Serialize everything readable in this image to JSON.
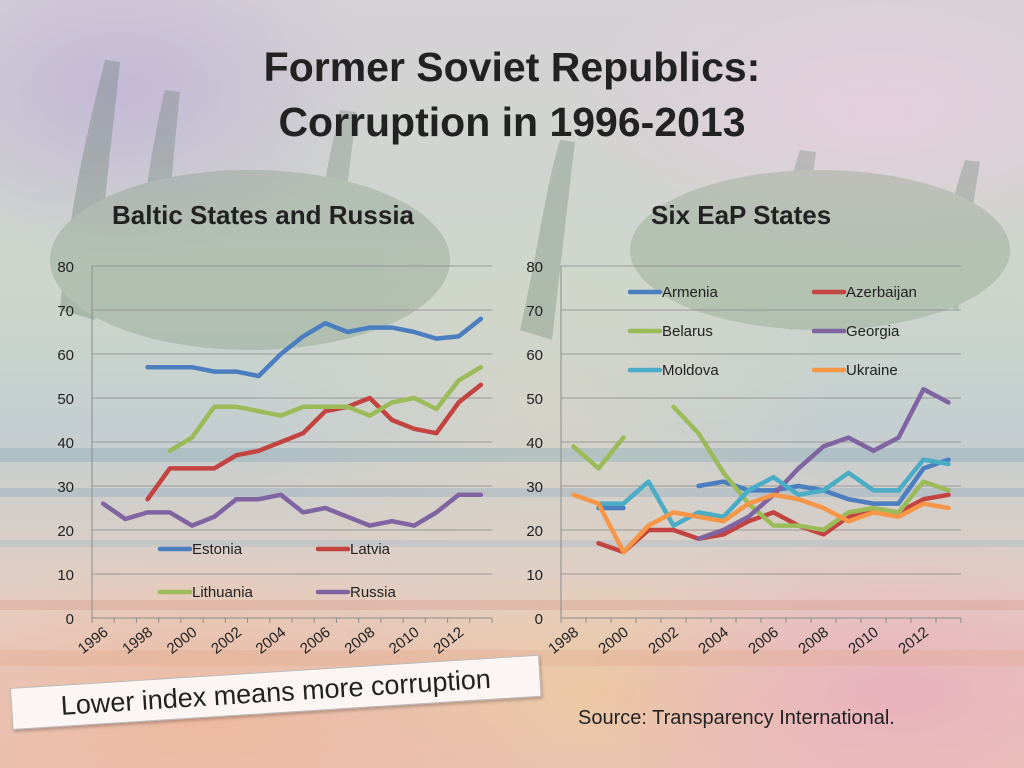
{
  "title_line1": "Former Soviet Republics:",
  "title_line2": "Corruption in 1996-2013",
  "note": "Lower index means more corruption",
  "source": "Source: Transparency International.",
  "chart_data": [
    {
      "type": "line",
      "title": "Baltic States and Russia",
      "ylim": [
        0,
        80
      ],
      "yticks": [
        0,
        10,
        20,
        30,
        40,
        50,
        60,
        70,
        80
      ],
      "xrange": [
        1996,
        2013
      ],
      "xticks": [
        1996,
        1998,
        2000,
        2002,
        2004,
        2006,
        2008,
        2010,
        2012
      ],
      "grid": true,
      "legend_position": "lower-center",
      "series": [
        {
          "name": "Estonia",
          "color": "#4a7ebf",
          "points": [
            [
              1998,
              57
            ],
            [
              1999,
              57
            ],
            [
              2000,
              57
            ],
            [
              2001,
              56
            ],
            [
              2002,
              56
            ],
            [
              2003,
              55
            ],
            [
              2004,
              60
            ],
            [
              2005,
              64
            ],
            [
              2006,
              67
            ],
            [
              2007,
              65
            ],
            [
              2008,
              66
            ],
            [
              2009,
              66
            ],
            [
              2010,
              65
            ],
            [
              2011,
              63.5
            ],
            [
              2012,
              64
            ],
            [
              2013,
              68
            ]
          ]
        },
        {
          "name": "Latvia",
          "color": "#c24340",
          "points": [
            [
              1998,
              27
            ],
            [
              1999,
              34
            ],
            [
              2000,
              34
            ],
            [
              2001,
              34
            ],
            [
              2002,
              37
            ],
            [
              2003,
              38
            ],
            [
              2004,
              40
            ],
            [
              2005,
              42
            ],
            [
              2006,
              47
            ],
            [
              2007,
              48
            ],
            [
              2008,
              50
            ],
            [
              2009,
              45
            ],
            [
              2010,
              43
            ],
            [
              2011,
              42
            ],
            [
              2012,
              49
            ],
            [
              2013,
              53
            ]
          ]
        },
        {
          "name": "Lithuania",
          "color": "#9bbb59",
          "points": [
            [
              1999,
              38
            ],
            [
              2000,
              41
            ],
            [
              2001,
              48
            ],
            [
              2002,
              48
            ],
            [
              2003,
              47
            ],
            [
              2004,
              46
            ],
            [
              2005,
              48
            ],
            [
              2006,
              48
            ],
            [
              2007,
              48
            ],
            [
              2008,
              46
            ],
            [
              2009,
              49
            ],
            [
              2010,
              50
            ],
            [
              2011,
              47.5
            ],
            [
              2012,
              54
            ],
            [
              2013,
              57
            ]
          ]
        },
        {
          "name": "Russia",
          "color": "#8064a2",
          "points": [
            [
              1996,
              26
            ],
            [
              1997,
              22.5
            ],
            [
              1998,
              24
            ],
            [
              1999,
              24
            ],
            [
              2000,
              21
            ],
            [
              2001,
              23
            ],
            [
              2002,
              27
            ],
            [
              2003,
              27
            ],
            [
              2004,
              28
            ],
            [
              2005,
              24
            ],
            [
              2006,
              25
            ],
            [
              2007,
              23
            ],
            [
              2008,
              21
            ],
            [
              2009,
              22
            ],
            [
              2010,
              21
            ],
            [
              2011,
              24
            ],
            [
              2012,
              28
            ],
            [
              2013,
              28
            ]
          ]
        }
      ]
    },
    {
      "type": "line",
      "title": "Six EaP States",
      "ylim": [
        0,
        80
      ],
      "yticks": [
        0,
        10,
        20,
        30,
        40,
        50,
        60,
        70,
        80
      ],
      "xrange": [
        1998,
        2013
      ],
      "xticks": [
        1998,
        2000,
        2002,
        2004,
        2006,
        2008,
        2010,
        2012
      ],
      "grid": true,
      "legend_position": "top",
      "series": [
        {
          "name": "Armenia",
          "color": "#4a7ebf",
          "points": [
            [
              1999,
              25
            ],
            [
              2000,
              25
            ],
            null,
            [
              2003,
              30
            ],
            [
              2004,
              31
            ],
            [
              2005,
              29
            ],
            [
              2006,
              29
            ],
            [
              2007,
              30
            ],
            [
              2008,
              29
            ],
            [
              2009,
              27
            ],
            [
              2010,
              26
            ],
            [
              2011,
              26
            ],
            [
              2012,
              34
            ],
            [
              2013,
              36
            ]
          ]
        },
        {
          "name": "Azerbaijan",
          "color": "#c24340",
          "points": [
            [
              1999,
              17
            ],
            [
              2000,
              15
            ],
            [
              2001,
              20
            ],
            [
              2002,
              20
            ],
            [
              2003,
              18
            ],
            [
              2004,
              19
            ],
            [
              2005,
              22
            ],
            [
              2006,
              24
            ],
            [
              2007,
              21
            ],
            [
              2008,
              19
            ],
            [
              2009,
              23
            ],
            [
              2010,
              24
            ],
            [
              2011,
              24
            ],
            [
              2012,
              27
            ],
            [
              2013,
              28
            ]
          ]
        },
        {
          "name": "Belarus",
          "color": "#9bbb59",
          "points": [
            [
              1998,
              39
            ],
            [
              1999,
              34
            ],
            [
              2000,
              41
            ],
            null,
            [
              2002,
              48
            ],
            [
              2003,
              42
            ],
            [
              2004,
              33
            ],
            [
              2005,
              26
            ],
            [
              2006,
              21
            ],
            [
              2007,
              21
            ],
            [
              2008,
              20
            ],
            [
              2009,
              24
            ],
            [
              2010,
              25
            ],
            [
              2011,
              24
            ],
            [
              2012,
              31
            ],
            [
              2013,
              29
            ]
          ]
        },
        {
          "name": "Georgia",
          "color": "#8064a2",
          "points": [
            [
              2003,
              18
            ],
            [
              2004,
              20
            ],
            [
              2005,
              23
            ],
            [
              2006,
              28
            ],
            [
              2007,
              34
            ],
            [
              2008,
              39
            ],
            [
              2009,
              41
            ],
            [
              2010,
              38
            ],
            [
              2011,
              41
            ],
            [
              2012,
              52
            ],
            [
              2013,
              49
            ]
          ]
        },
        {
          "name": "Moldova",
          "color": "#4bacc6",
          "points": [
            [
              1999,
              26
            ],
            [
              2000,
              26
            ],
            [
              2001,
              31
            ],
            [
              2002,
              21
            ],
            [
              2003,
              24
            ],
            [
              2004,
              23
            ],
            [
              2005,
              29
            ],
            [
              2006,
              32
            ],
            [
              2007,
              28
            ],
            [
              2008,
              29
            ],
            [
              2009,
              33
            ],
            [
              2010,
              29
            ],
            [
              2011,
              29
            ],
            [
              2012,
              36
            ],
            [
              2013,
              35
            ]
          ]
        },
        {
          "name": "Ukraine",
          "color": "#f79646",
          "points": [
            [
              1998,
              28
            ],
            [
              1999,
              26
            ],
            [
              2000,
              15
            ],
            [
              2001,
              21
            ],
            [
              2002,
              24
            ],
            [
              2003,
              23
            ],
            [
              2004,
              22
            ],
            [
              2005,
              26
            ],
            [
              2006,
              28
            ],
            [
              2007,
              27
            ],
            [
              2008,
              25
            ],
            [
              2009,
              22
            ],
            [
              2010,
              24
            ],
            [
              2011,
              23
            ],
            [
              2012,
              26
            ],
            [
              2013,
              25
            ]
          ]
        }
      ]
    }
  ]
}
